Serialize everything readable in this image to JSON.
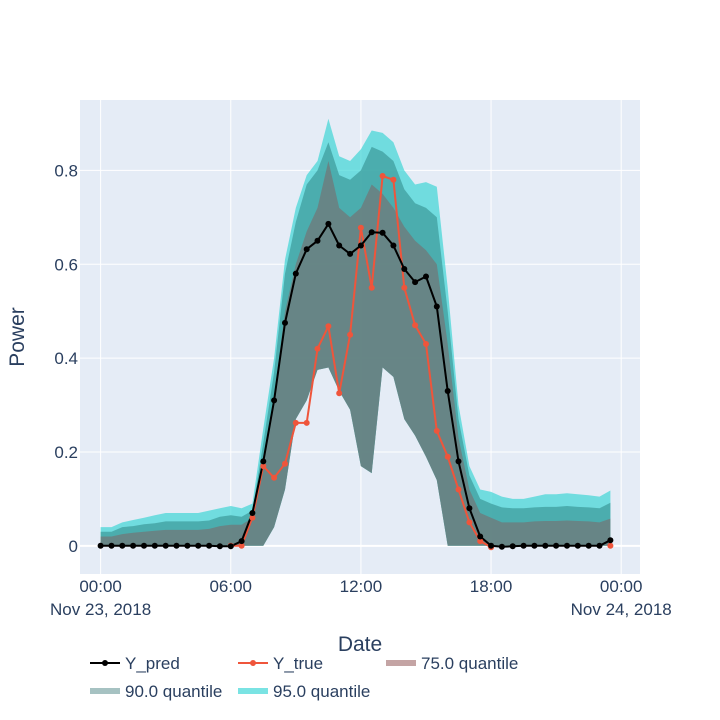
{
  "chart_data": {
    "type": "area",
    "xlabel": "Date",
    "ylabel": "Power",
    "xlim": [
      "2018-11-22T23:03",
      "2018-11-24T00:52"
    ],
    "ylim": [
      -0.06,
      0.95
    ],
    "x_ticks": [
      {
        "value": "2018-11-23T00:00",
        "label": "00:00",
        "sublabel": "Nov 23, 2018"
      },
      {
        "value": "2018-11-23T06:00",
        "label": "06:00",
        "sublabel": ""
      },
      {
        "value": "2018-11-23T12:00",
        "label": "12:00",
        "sublabel": ""
      },
      {
        "value": "2018-11-23T18:00",
        "label": "18:00",
        "sublabel": ""
      },
      {
        "value": "2018-11-24T00:00",
        "label": "00:00",
        "sublabel": "Nov 24, 2018"
      }
    ],
    "y_ticks": [
      {
        "value": 0,
        "label": "0"
      },
      {
        "value": 0.2,
        "label": "0.2"
      },
      {
        "value": 0.4,
        "label": "0.4"
      },
      {
        "value": 0.6,
        "label": "0.6"
      },
      {
        "value": 0.8,
        "label": "0.8"
      }
    ],
    "grid": true,
    "legend_position": "bottom",
    "colors": {
      "background": "#e5ecf6",
      "grid": "#ffffff",
      "text": "#2a3f5f",
      "q95": "#3ed6d6",
      "q90": "#3f9e9e",
      "q75": "#7a6a6a",
      "y_pred": "#000000",
      "y_true": "#ef553b"
    },
    "legend": [
      {
        "key": "y_pred",
        "label": "Y_pred",
        "style": "line-marker"
      },
      {
        "key": "y_true",
        "label": "Y_true",
        "style": "line-marker"
      },
      {
        "key": "q75",
        "label": "75.0 quantile",
        "style": "band",
        "color": "#c4a4a4"
      },
      {
        "key": "q90",
        "label": "90.0 quantile",
        "style": "band",
        "color": "#a6c2c2"
      },
      {
        "key": "q95",
        "label": "95.0 quantile",
        "style": "band",
        "color": "#7ae3e3"
      }
    ],
    "x": [
      "2018-11-23T00:00",
      "2018-11-23T00:30",
      "2018-11-23T01:00",
      "2018-11-23T01:30",
      "2018-11-23T02:00",
      "2018-11-23T02:30",
      "2018-11-23T03:00",
      "2018-11-23T03:30",
      "2018-11-23T04:00",
      "2018-11-23T04:30",
      "2018-11-23T05:00",
      "2018-11-23T05:30",
      "2018-11-23T06:00",
      "2018-11-23T06:30",
      "2018-11-23T07:00",
      "2018-11-23T07:30",
      "2018-11-23T08:00",
      "2018-11-23T08:30",
      "2018-11-23T09:00",
      "2018-11-23T09:30",
      "2018-11-23T10:00",
      "2018-11-23T10:30",
      "2018-11-23T11:00",
      "2018-11-23T11:30",
      "2018-11-23T12:00",
      "2018-11-23T12:30",
      "2018-11-23T13:00",
      "2018-11-23T13:30",
      "2018-11-23T14:00",
      "2018-11-23T14:30",
      "2018-11-23T15:00",
      "2018-11-23T15:30",
      "2018-11-23T16:00",
      "2018-11-23T16:30",
      "2018-11-23T17:00",
      "2018-11-23T17:30",
      "2018-11-23T18:00",
      "2018-11-23T18:30",
      "2018-11-23T19:00",
      "2018-11-23T19:30",
      "2018-11-23T20:00",
      "2018-11-23T20:30",
      "2018-11-23T21:00",
      "2018-11-23T21:30",
      "2018-11-23T22:00",
      "2018-11-23T22:30",
      "2018-11-23T23:00",
      "2018-11-23T23:30"
    ],
    "series": [
      {
        "key": "y_pred",
        "name": "Y_pred",
        "values": [
          0.0,
          0.0,
          0.0,
          0.0,
          0.0,
          0.0,
          0.0,
          0.0,
          0.0,
          0.0,
          0.0,
          -0.001,
          -0.001,
          0.01,
          0.07,
          0.18,
          0.31,
          0.475,
          0.58,
          0.632,
          0.65,
          0.686,
          0.64,
          0.622,
          0.64,
          0.668,
          0.667,
          0.64,
          0.59,
          0.562,
          0.574,
          0.51,
          0.33,
          0.18,
          0.08,
          0.02,
          0.0,
          -0.002,
          -0.001,
          0.0,
          0.0,
          0.0,
          0.0,
          0.0,
          0.0,
          0.0,
          0.0,
          0.012
        ]
      },
      {
        "key": "y_true",
        "name": "Y_true",
        "values": [
          null,
          null,
          null,
          null,
          null,
          null,
          null,
          null,
          null,
          null,
          null,
          null,
          0.0,
          0.0,
          0.06,
          0.17,
          0.145,
          0.175,
          0.262,
          0.262,
          0.42,
          0.468,
          0.325,
          0.45,
          0.678,
          0.55,
          0.788,
          0.78,
          0.55,
          0.47,
          0.43,
          0.245,
          0.19,
          0.12,
          0.05,
          0.01,
          -0.003,
          null,
          null,
          null,
          null,
          null,
          null,
          null,
          null,
          null,
          null,
          0.0
        ]
      }
    ],
    "bands": [
      {
        "key": "q95",
        "name": "95.0 quantile",
        "upper": [
          0.04,
          0.04,
          0.05,
          0.055,
          0.06,
          0.065,
          0.07,
          0.07,
          0.07,
          0.07,
          0.075,
          0.08,
          0.085,
          0.08,
          0.09,
          0.25,
          0.4,
          0.61,
          0.72,
          0.79,
          0.82,
          0.91,
          0.83,
          0.82,
          0.845,
          0.885,
          0.88,
          0.86,
          0.8,
          0.77,
          0.775,
          0.765,
          0.55,
          0.3,
          0.17,
          0.12,
          0.115,
          0.105,
          0.1,
          0.1,
          0.105,
          0.11,
          0.11,
          0.112,
          0.11,
          0.108,
          0.105,
          0.118
        ],
        "lower": [
          0,
          0,
          0,
          0,
          0,
          0,
          0,
          0,
          0,
          0,
          0,
          0,
          0,
          0,
          0,
          0,
          0.04,
          0.12,
          0.27,
          0.31,
          0.375,
          0.38,
          0.33,
          0.29,
          0.17,
          0.155,
          0.38,
          0.36,
          0.27,
          0.235,
          0.19,
          0.14,
          0,
          0,
          0,
          0,
          0,
          0,
          0,
          0,
          0,
          0,
          0,
          0,
          0,
          0,
          0,
          0
        ]
      },
      {
        "key": "q90",
        "name": "90.0 quantile",
        "upper": [
          0.03,
          0.03,
          0.04,
          0.042,
          0.046,
          0.048,
          0.052,
          0.052,
          0.052,
          0.052,
          0.054,
          0.062,
          0.065,
          0.062,
          0.075,
          0.22,
          0.37,
          0.58,
          0.69,
          0.77,
          0.8,
          0.86,
          0.79,
          0.78,
          0.8,
          0.85,
          0.84,
          0.82,
          0.76,
          0.73,
          0.72,
          0.7,
          0.5,
          0.27,
          0.15,
          0.1,
          0.09,
          0.082,
          0.08,
          0.08,
          0.082,
          0.083,
          0.083,
          0.085,
          0.083,
          0.082,
          0.08,
          0.092
        ]
      },
      {
        "key": "q75",
        "name": "75.0 quantile",
        "upper": [
          0.02,
          0.02,
          0.025,
          0.028,
          0.03,
          0.032,
          0.034,
          0.034,
          0.034,
          0.034,
          0.036,
          0.042,
          0.045,
          0.045,
          0.06,
          0.18,
          0.32,
          0.5,
          0.6,
          0.67,
          0.72,
          0.82,
          0.72,
          0.7,
          0.72,
          0.77,
          0.75,
          0.72,
          0.68,
          0.65,
          0.63,
          0.6,
          0.43,
          0.23,
          0.12,
          0.07,
          0.06,
          0.05,
          0.05,
          0.05,
          0.052,
          0.053,
          0.053,
          0.054,
          0.053,
          0.052,
          0.05,
          0.058
        ]
      }
    ]
  }
}
